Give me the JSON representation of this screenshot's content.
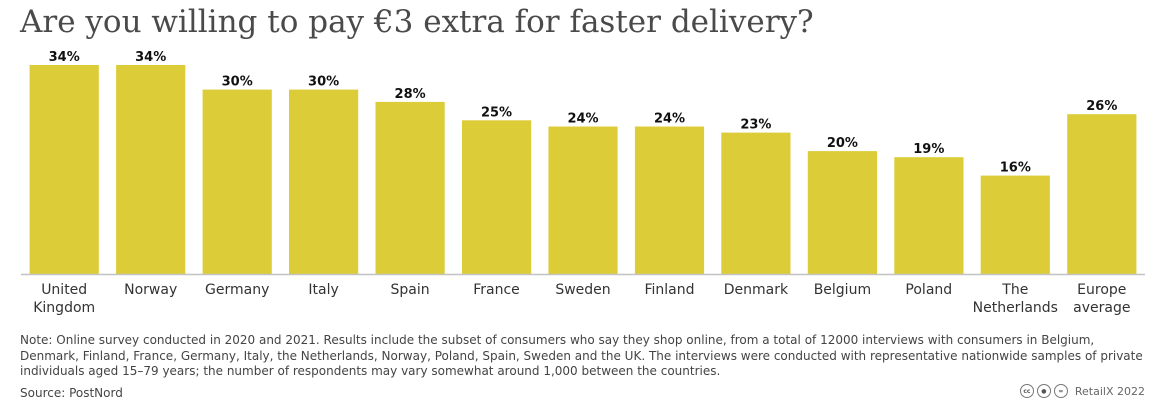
{
  "title": "Are you willing to pay €3 extra for faster delivery?",
  "chart_data": {
    "type": "bar",
    "title": "Are you willing to pay €3 extra for faster delivery?",
    "categories": [
      [
        "United",
        "Kingdom"
      ],
      [
        "Norway"
      ],
      [
        "Germany"
      ],
      [
        "Italy"
      ],
      [
        "Spain"
      ],
      [
        "France"
      ],
      [
        "Sweden"
      ],
      [
        "Finland"
      ],
      [
        "Denmark"
      ],
      [
        "Belgium"
      ],
      [
        "Poland"
      ],
      [
        "The",
        "Netherlands"
      ],
      [
        "Europe",
        "average"
      ]
    ],
    "values": [
      34,
      34,
      30,
      30,
      28,
      25,
      24,
      24,
      23,
      20,
      19,
      16,
      26
    ],
    "value_labels": [
      "34%",
      "34%",
      "30%",
      "30%",
      "28%",
      "25%",
      "24%",
      "24%",
      "23%",
      "20%",
      "19%",
      "16%",
      "26%"
    ],
    "unit": "%",
    "ylim": [
      0,
      34
    ],
    "grid": false,
    "bar_color": "#dccd38",
    "axis_color": "#c2c2c2"
  },
  "note": "Note: Online survey conducted in 2020 and 2021. Results include the subset of consumers who say they shop online, from a total of 12000 interviews with consumers in Belgium, Denmark, Finland, France, Germany, Italy, the Netherlands, Norway, Poland, Spain, Sweden and the UK. The interviews were conducted with representative nationwide samples of private individuals aged 15–79 years; the number of respondents may vary somewhat around 1,000 between the countries.",
  "source": "Source: PostNord",
  "credit": "RetailX 2022",
  "license_icons": [
    "cc-icon",
    "attribution-icon",
    "no-derivatives-icon"
  ]
}
